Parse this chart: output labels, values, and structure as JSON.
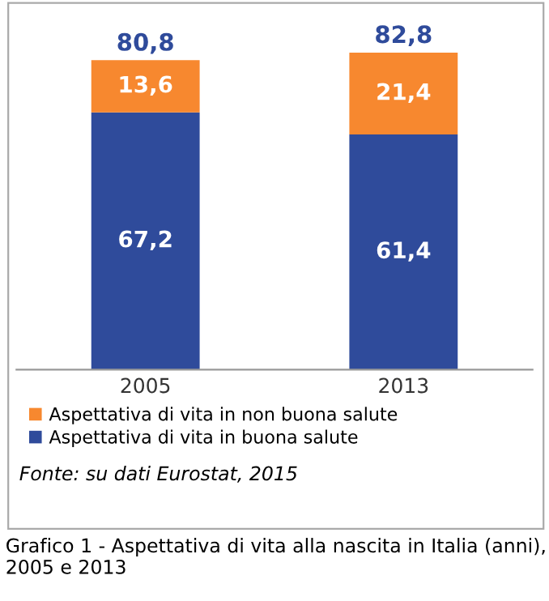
{
  "chart_data": {
    "type": "bar",
    "stacked": true,
    "title": "Grafico 1 - Aspettativa di vita alla nascita in Italia (anni), 2005 e 2013",
    "categories": [
      "2005",
      "2013"
    ],
    "series": [
      {
        "name": "Aspettativa di vita in buona salute",
        "color": "#2f4b9b",
        "values": [
          67.2,
          61.4
        ],
        "value_labels": [
          "67,2",
          "61,4"
        ]
      },
      {
        "name": "Aspettativa di vita in non buona salute",
        "color": "#f7882f",
        "values": [
          13.6,
          21.4
        ],
        "value_labels": [
          "13,6",
          "21,4"
        ]
      }
    ],
    "totals": [
      "80,8",
      "82,8"
    ],
    "legend": "bottom",
    "annotations": [
      "Fonte: su dati Eurostat, 2015"
    ]
  }
}
